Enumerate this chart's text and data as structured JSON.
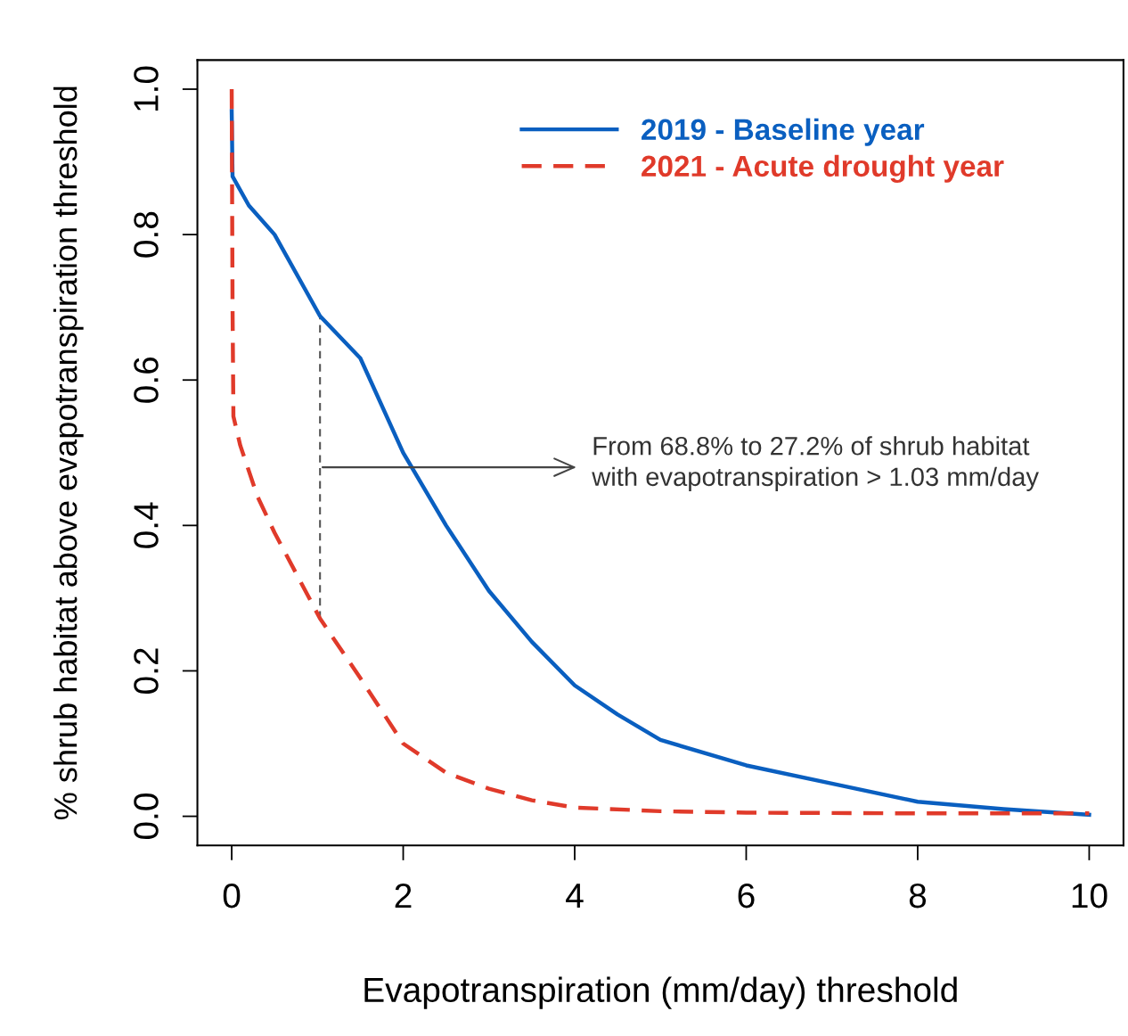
{
  "chart_data": {
    "type": "line",
    "xlabel": "Evapotranspiration (mm/day) threshold",
    "ylabel": "% shrub habitat above evapotranspiration threshold",
    "series": [
      {
        "name": "2019 - Baseline year",
        "color": "#0a5fc0",
        "line_style": "solid",
        "x": [
          0,
          0.01,
          0.2,
          0.5,
          1.03,
          1.5,
          2.0,
          2.5,
          3.0,
          3.5,
          4.0,
          4.5,
          5.0,
          6.0,
          7.0,
          8.0,
          9.0,
          10.0
        ],
        "values": [
          0.97,
          0.88,
          0.84,
          0.8,
          0.688,
          0.63,
          0.5,
          0.4,
          0.31,
          0.24,
          0.18,
          0.14,
          0.105,
          0.07,
          0.045,
          0.02,
          0.01,
          0.002
        ]
      },
      {
        "name": "2021 - Acute drought year",
        "color": "#e03a2a",
        "line_style": "dashed",
        "x": [
          0,
          0.01,
          0.02,
          0.1,
          0.3,
          0.5,
          1.03,
          1.5,
          2.0,
          2.5,
          3.0,
          3.5,
          4.0,
          5.0,
          6.0,
          8.0,
          10.0
        ],
        "values": [
          1.0,
          0.7,
          0.55,
          0.51,
          0.44,
          0.39,
          0.272,
          0.19,
          0.1,
          0.06,
          0.038,
          0.022,
          0.012,
          0.007,
          0.005,
          0.004,
          0.004
        ]
      },
      {
        "color": "#555555",
        "line_style": "dashed",
        "x": [
          1.03,
          1.03
        ],
        "values": [
          0.272,
          0.688
        ]
      }
    ],
    "annotations": [
      {
        "text": "From 68.8% to 27.2% of shrub habitat\nwith evapotranspiration > 1.03 mm/day",
        "x": 1.03,
        "y": 0.48
      }
    ],
    "xlim": [
      -0.4,
      10.4
    ],
    "ylim": [
      -0.04,
      1.04
    ],
    "xticks": [
      0,
      2,
      4,
      6,
      8,
      10
    ],
    "yticks": [
      {
        "value": 0,
        "label": "0.0"
      },
      {
        "value": 0.2,
        "label": "0.2"
      },
      {
        "value": 0.4,
        "label": "0.4"
      },
      {
        "value": 0.6,
        "label": "0.6"
      },
      {
        "value": 0.8,
        "label": "0.8"
      },
      {
        "value": 1.0,
        "label": "1.0"
      }
    ],
    "legend": "top right",
    "grid": false
  }
}
